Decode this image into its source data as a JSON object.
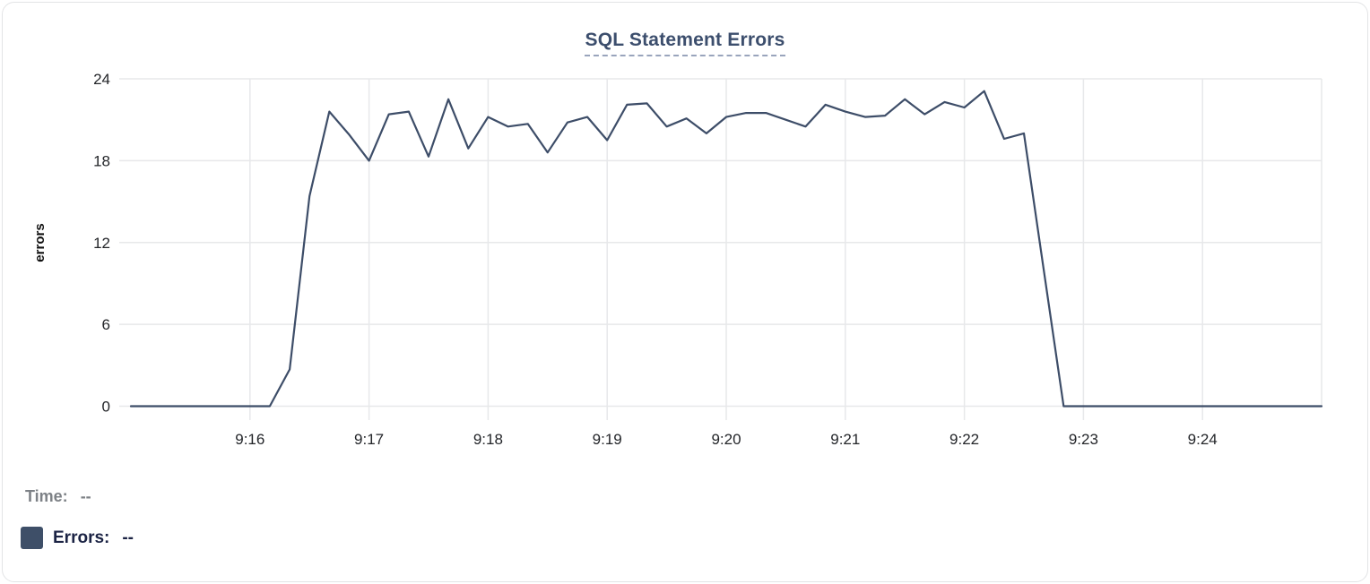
{
  "tooltip": {
    "time_label": "Time:",
    "time_value": "--",
    "errors_label": "Errors:",
    "errors_value": "--"
  },
  "colors": {
    "line": "#3d4d68",
    "swatch": "#3e4f68",
    "title": "#3c4e6d",
    "title_underline": "#99a4bc",
    "grid": "#e7e8ea",
    "tick_text": "#232529",
    "axis_title": "#111111",
    "time_text": "#7d8186",
    "errors_text": "#1b2344",
    "card_border": "#e3e4e6"
  },
  "chart_data": {
    "type": "line",
    "title": "SQL Statement Errors",
    "xlabel": "",
    "ylabel": "errors",
    "ylim": [
      0,
      24
    ],
    "y_ticks": [
      0,
      6,
      12,
      18,
      24
    ],
    "x_tick_labels": [
      "9:16",
      "9:17",
      "9:18",
      "9:19",
      "9:20",
      "9:21",
      "9:22",
      "9:23",
      "9:24"
    ],
    "x_range": [
      "9:15:00",
      "9:25:00"
    ],
    "grid": true,
    "legend_position": "none",
    "series": [
      {
        "name": "Errors",
        "color": "#3d4d68",
        "x": [
          "9:15:00",
          "9:15:10",
          "9:15:20",
          "9:15:30",
          "9:15:40",
          "9:15:50",
          "9:16:00",
          "9:16:10",
          "9:16:20",
          "9:16:30",
          "9:16:40",
          "9:16:50",
          "9:17:00",
          "9:17:10",
          "9:17:20",
          "9:17:30",
          "9:17:40",
          "9:17:50",
          "9:18:00",
          "9:18:10",
          "9:18:20",
          "9:18:30",
          "9:18:40",
          "9:18:50",
          "9:19:00",
          "9:19:10",
          "9:19:20",
          "9:19:30",
          "9:19:40",
          "9:19:50",
          "9:20:00",
          "9:20:10",
          "9:20:20",
          "9:20:30",
          "9:20:40",
          "9:20:50",
          "9:21:00",
          "9:21:10",
          "9:21:20",
          "9:21:30",
          "9:21:40",
          "9:21:50",
          "9:22:00",
          "9:22:10",
          "9:22:20",
          "9:22:30",
          "9:22:40",
          "9:22:50",
          "9:23:00",
          "9:23:10",
          "9:23:20",
          "9:23:30",
          "9:23:40",
          "9:23:50",
          "9:24:00",
          "9:24:10",
          "9:24:20",
          "9:24:30",
          "9:24:40",
          "9:24:50",
          "9:25:00"
        ],
        "values": [
          0,
          0,
          0,
          0,
          0,
          0,
          0,
          0,
          2.7,
          15.4,
          21.6,
          19.9,
          18,
          21.4,
          21.6,
          18.3,
          22.5,
          18.9,
          21.2,
          20.5,
          20.7,
          18.6,
          20.8,
          21.2,
          19.5,
          22.1,
          22.2,
          20.5,
          21.1,
          20,
          21.2,
          21.5,
          21.5,
          21,
          20.5,
          22.1,
          21.6,
          21.2,
          21.3,
          22.5,
          21.4,
          22.3,
          21.9,
          23.1,
          19.6,
          20,
          10,
          0,
          0,
          0,
          0,
          0,
          0,
          0,
          0,
          0,
          0,
          0,
          0,
          0,
          0
        ]
      }
    ]
  }
}
